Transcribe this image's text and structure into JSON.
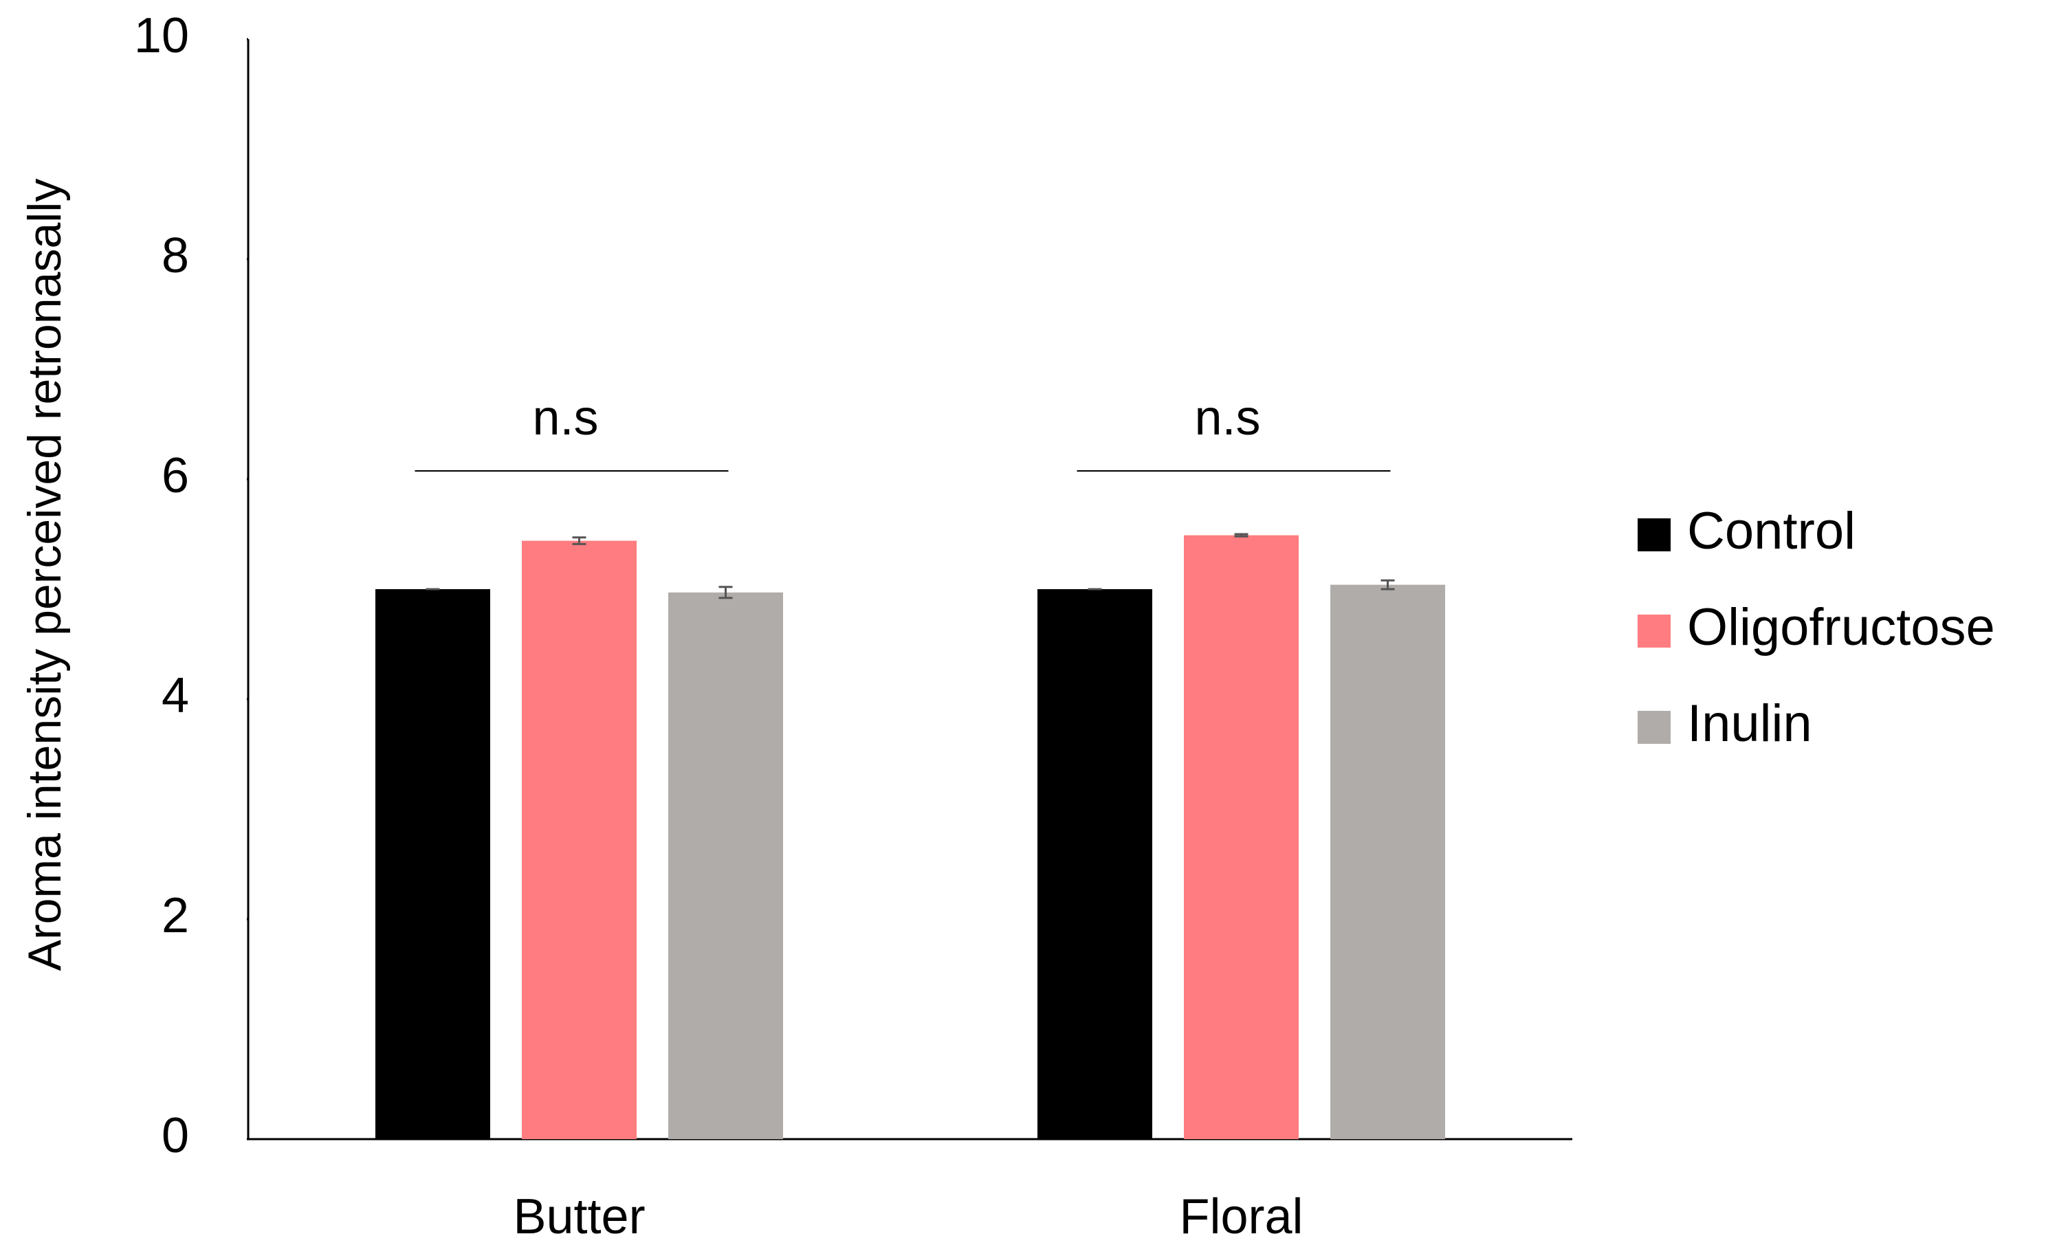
{
  "chart_data": {
    "type": "bar",
    "y_label": "Aroma intensity perceived retronasally",
    "categories": [
      "Butter",
      "Floral"
    ],
    "series": [
      {
        "name": "Control",
        "color": "#000000",
        "values": [
          5.0,
          5.0
        ],
        "errors": [
          0.0,
          0.0
        ]
      },
      {
        "name": "Oligofructose",
        "color": "#ff7c80",
        "values": [
          5.44,
          5.49
        ],
        "errors": [
          0.03,
          0.01
        ]
      },
      {
        "name": "Inulin",
        "color": "#b0aca9",
        "values": [
          4.97,
          5.04
        ],
        "errors": [
          0.05,
          0.04
        ]
      }
    ],
    "annotations": [
      "n.s",
      "n.s"
    ],
    "ylim": [
      0,
      10
    ],
    "yticks": [
      0,
      2,
      4,
      6,
      8,
      10
    ],
    "grid": false,
    "legend": "right"
  }
}
